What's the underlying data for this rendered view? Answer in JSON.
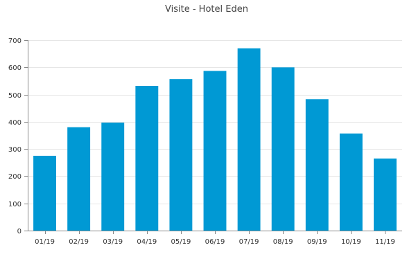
{
  "chart_data": {
    "type": "bar",
    "title": "Visite - Hotel Eden",
    "xlabel": "",
    "ylabel": "",
    "categories": [
      "01/19",
      "02/19",
      "03/19",
      "04/19",
      "05/19",
      "06/19",
      "07/19",
      "08/19",
      "09/19",
      "10/19",
      "11/19"
    ],
    "values": [
      275,
      380,
      397,
      532,
      557,
      587,
      670,
      600,
      483,
      357,
      265
    ],
    "ylim": [
      0,
      700
    ],
    "yticks": [
      0,
      100,
      200,
      300,
      400,
      500,
      600,
      700
    ],
    "grid": true,
    "legend": "none",
    "colors": {
      "bar": "#0099d4"
    }
  }
}
